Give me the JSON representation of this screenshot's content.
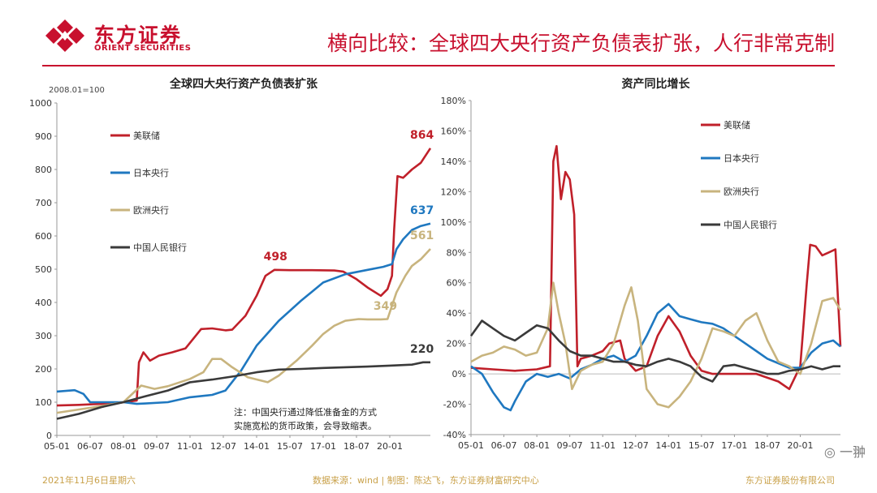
{
  "header": {
    "logo_cn": "东方证券",
    "logo_en": "ORIENT SECURITIES",
    "title": "横向比较：全球四大央行资产负债表扩张，人行非常克制"
  },
  "footer": {
    "date": "2021年11月6日星期六",
    "source": "数据来源：wind | 制图：陈达飞，东方证券财富研究中心",
    "company": "东方证券股份有限公司"
  },
  "watermark": "一翀",
  "colors": {
    "fed": "#c0202a",
    "boj": "#1f78c0",
    "ecb": "#c8b47e",
    "pboc": "#3a3a3a",
    "brand": "#c8102e"
  },
  "chart_data": [
    {
      "type": "line",
      "title": "全球四大央行资产负债表扩张",
      "base_label": "2008.01=100",
      "ylim": [
        0,
        1000
      ],
      "yticks": [
        0,
        100,
        200,
        300,
        400,
        500,
        600,
        700,
        800,
        900,
        1000
      ],
      "ytick_labels": [
        "0",
        "100",
        "200",
        "300",
        "400",
        "500",
        "600",
        "700",
        "800",
        "900",
        "1000"
      ],
      "xlim": [
        2005.0,
        2021.83
      ],
      "xticks": [
        2005.0,
        2006.5,
        2008.0,
        2009.5,
        2011.0,
        2012.5,
        2014.0,
        2015.5,
        2017.0,
        2018.5,
        2020.0
      ],
      "xtick_labels": [
        "05-01",
        "06-07",
        "08-01",
        "09-07",
        "11-01",
        "12-07",
        "14-01",
        "15-07",
        "17-01",
        "18-07",
        "20-01"
      ],
      "legend": [
        "美联储",
        "日本央行",
        "欧洲央行",
        "中国人民银行"
      ],
      "annotation_note": [
        "注：中国央行通过降低准备金的方式",
        "实施宽松的货币政策，会导致缩表。"
      ],
      "series": [
        {
          "name": "美联储",
          "color_key": "fed",
          "x": [
            2005.0,
            2006.0,
            2007.0,
            2007.9,
            2008.6,
            2008.7,
            2008.9,
            2009.2,
            2009.6,
            2010.2,
            2010.8,
            2011.5,
            2012.0,
            2012.6,
            2012.9,
            2013.5,
            2014.0,
            2014.4,
            2014.8,
            2015.5,
            2016.5,
            2017.5,
            2017.9,
            2018.5,
            2019.0,
            2019.6,
            2019.9,
            2020.1,
            2020.2,
            2020.35,
            2020.6,
            2021.0,
            2021.4,
            2021.83
          ],
          "y": [
            90,
            92,
            95,
            99,
            105,
            220,
            250,
            225,
            240,
            250,
            262,
            320,
            322,
            316,
            318,
            360,
            420,
            480,
            498,
            497,
            497,
            496,
            493,
            470,
            445,
            420,
            440,
            480,
            620,
            780,
            775,
            800,
            820,
            864
          ]
        },
        {
          "name": "日本央行",
          "color_key": "boj",
          "x": [
            2005.0,
            2005.8,
            2006.2,
            2006.5,
            2007.5,
            2008.0,
            2008.6,
            2009.0,
            2010.0,
            2011.0,
            2012.0,
            2012.6,
            2013.3,
            2014.0,
            2015.0,
            2016.0,
            2017.0,
            2018.0,
            2019.0,
            2019.7,
            2020.1,
            2020.3,
            2020.6,
            2021.0,
            2021.4,
            2021.83
          ],
          "y": [
            132,
            136,
            125,
            100,
            100,
            100,
            95,
            96,
            100,
            115,
            122,
            135,
            195,
            270,
            345,
            405,
            460,
            485,
            498,
            507,
            515,
            560,
            590,
            618,
            630,
            637
          ]
        },
        {
          "name": "欧洲央行",
          "color_key": "ecb",
          "x": [
            2005.0,
            2006.0,
            2007.0,
            2008.0,
            2008.8,
            2009.4,
            2010.0,
            2011.0,
            2011.6,
            2012.0,
            2012.4,
            2012.9,
            2013.6,
            2014.5,
            2015.0,
            2015.8,
            2016.5,
            2017.0,
            2017.5,
            2018.0,
            2018.6,
            2019.0,
            2019.6,
            2019.9,
            2020.3,
            2020.7,
            2021.0,
            2021.4,
            2021.83
          ],
          "y": [
            68,
            78,
            88,
            100,
            150,
            140,
            148,
            170,
            190,
            230,
            230,
            205,
            175,
            160,
            180,
            225,
            270,
            305,
            330,
            345,
            350,
            349,
            349,
            350,
            430,
            480,
            510,
            530,
            561
          ]
        },
        {
          "name": "中国人民银行",
          "color_key": "pboc",
          "x": [
            2005.0,
            2006.0,
            2007.0,
            2008.0,
            2009.0,
            2010.0,
            2011.0,
            2012.0,
            2013.0,
            2014.0,
            2015.0,
            2016.0,
            2017.0,
            2018.0,
            2019.0,
            2020.0,
            2021.0,
            2021.5,
            2021.83
          ],
          "y": [
            50,
            65,
            85,
            100,
            118,
            135,
            160,
            168,
            178,
            190,
            198,
            200,
            203,
            205,
            207,
            210,
            213,
            220,
            220
          ]
        }
      ],
      "labels": [
        {
          "text": "864",
          "series_key": "fed",
          "x": 2021.45,
          "y": 864
        },
        {
          "text": "637",
          "series_key": "boj",
          "x": 2021.45,
          "y": 637
        },
        {
          "text": "561",
          "series_key": "ecb",
          "x": 2021.45,
          "y": 561
        },
        {
          "text": "498",
          "series_key": "fed",
          "x": 2014.85,
          "y": 498
        },
        {
          "text": "349",
          "series_key": "ecb",
          "x": 2019.8,
          "y": 349
        },
        {
          "text": "220",
          "series_key": "pboc",
          "x": 2021.45,
          "y": 220
        }
      ]
    },
    {
      "type": "line",
      "title": "资产同比增长",
      "ylim": [
        -40,
        180
      ],
      "yticks": [
        -40,
        -20,
        0,
        20,
        40,
        60,
        80,
        100,
        120,
        140,
        160,
        180
      ],
      "ytick_labels": [
        "-40%",
        "-20%",
        "0%",
        "20%",
        "40%",
        "60%",
        "80%",
        "100%",
        "120%",
        "140%",
        "160%",
        "180%"
      ],
      "xlim": [
        2005.0,
        2021.83
      ],
      "xticks": [
        2005.0,
        2006.5,
        2008.0,
        2009.5,
        2011.0,
        2012.5,
        2014.0,
        2015.5,
        2017.0,
        2018.5,
        2020.0
      ],
      "xtick_labels": [
        "05-01",
        "06-07",
        "08-01",
        "09-07",
        "11-01",
        "12-07",
        "14-01",
        "15-07",
        "17-01",
        "18-07",
        "20-01"
      ],
      "legend": [
        "美联储",
        "日本央行",
        "欧洲央行",
        "中国人民银行"
      ],
      "series": [
        {
          "name": "美联储",
          "color_key": "fed",
          "x": [
            2005.0,
            2006.0,
            2007.0,
            2008.0,
            2008.6,
            2008.75,
            2008.9,
            2009.1,
            2009.3,
            2009.5,
            2009.7,
            2009.85,
            2010.0,
            2010.5,
            2011.0,
            2011.3,
            2011.8,
            2012.0,
            2012.5,
            2013.0,
            2013.5,
            2014.0,
            2014.5,
            2015.0,
            2015.5,
            2016.0,
            2017.0,
            2018.0,
            2019.0,
            2019.5,
            2020.0,
            2020.3,
            2020.45,
            2020.7,
            2021.0,
            2021.3,
            2021.6,
            2021.83
          ],
          "y": [
            4,
            3,
            2,
            3,
            5,
            140,
            150,
            115,
            133,
            128,
            105,
            5,
            10,
            12,
            15,
            20,
            22,
            10,
            2,
            5,
            25,
            38,
            28,
            12,
            2,
            0,
            0,
            0,
            -5,
            -10,
            5,
            60,
            85,
            84,
            78,
            80,
            82,
            18
          ]
        },
        {
          "name": "日本央行",
          "color_key": "boj",
          "x": [
            2005.0,
            2005.5,
            2006.0,
            2006.5,
            2006.8,
            2007.0,
            2007.5,
            2008.0,
            2008.5,
            2009.0,
            2009.5,
            2010.0,
            2010.5,
            2011.0,
            2011.5,
            2012.0,
            2012.5,
            2013.0,
            2013.5,
            2014.0,
            2014.5,
            2015.0,
            2015.5,
            2016.0,
            2016.5,
            2017.0,
            2017.5,
            2018.0,
            2018.5,
            2019.0,
            2019.5,
            2020.0,
            2020.5,
            2021.0,
            2021.5,
            2021.83
          ],
          "y": [
            5,
            0,
            -12,
            -22,
            -24,
            -18,
            -5,
            0,
            -2,
            0,
            -3,
            3,
            6,
            10,
            12,
            8,
            12,
            25,
            40,
            46,
            38,
            36,
            34,
            33,
            30,
            25,
            20,
            15,
            10,
            7,
            4,
            4,
            14,
            20,
            22,
            18
          ]
        },
        {
          "name": "欧洲央行",
          "color_key": "ecb",
          "x": [
            2005.0,
            2005.5,
            2006.0,
            2006.5,
            2007.0,
            2007.5,
            2008.0,
            2008.5,
            2008.75,
            2009.0,
            2009.3,
            2009.6,
            2010.0,
            2010.5,
            2011.0,
            2011.5,
            2012.0,
            2012.3,
            2012.6,
            2013.0,
            2013.5,
            2014.0,
            2014.5,
            2015.0,
            2015.5,
            2016.0,
            2016.5,
            2017.0,
            2017.5,
            2018.0,
            2018.5,
            2019.0,
            2019.5,
            2020.0,
            2020.5,
            2021.0,
            2021.5,
            2021.83
          ],
          "y": [
            8,
            12,
            14,
            18,
            16,
            12,
            14,
            30,
            60,
            40,
            20,
            -10,
            2,
            6,
            8,
            20,
            45,
            57,
            35,
            -10,
            -20,
            -22,
            -15,
            -5,
            10,
            30,
            28,
            25,
            35,
            40,
            22,
            8,
            5,
            0,
            20,
            48,
            50,
            42
          ]
        },
        {
          "name": "中国人民银行",
          "color_key": "pboc",
          "x": [
            2005.0,
            2005.5,
            2006.0,
            2006.5,
            2007.0,
            2007.5,
            2008.0,
            2008.5,
            2009.0,
            2009.5,
            2010.0,
            2010.5,
            2011.0,
            2011.5,
            2012.0,
            2012.5,
            2013.0,
            2013.5,
            2014.0,
            2014.5,
            2015.0,
            2015.5,
            2016.0,
            2016.5,
            2017.0,
            2017.5,
            2018.0,
            2018.5,
            2019.0,
            2019.5,
            2020.0,
            2020.5,
            2021.0,
            2021.5,
            2021.83
          ],
          "y": [
            25,
            35,
            30,
            25,
            22,
            27,
            32,
            30,
            22,
            15,
            12,
            12,
            10,
            8,
            8,
            6,
            5,
            8,
            10,
            8,
            5,
            -2,
            -5,
            5,
            6,
            4,
            2,
            0,
            0,
            2,
            3,
            5,
            3,
            5,
            5
          ]
        }
      ]
    }
  ]
}
